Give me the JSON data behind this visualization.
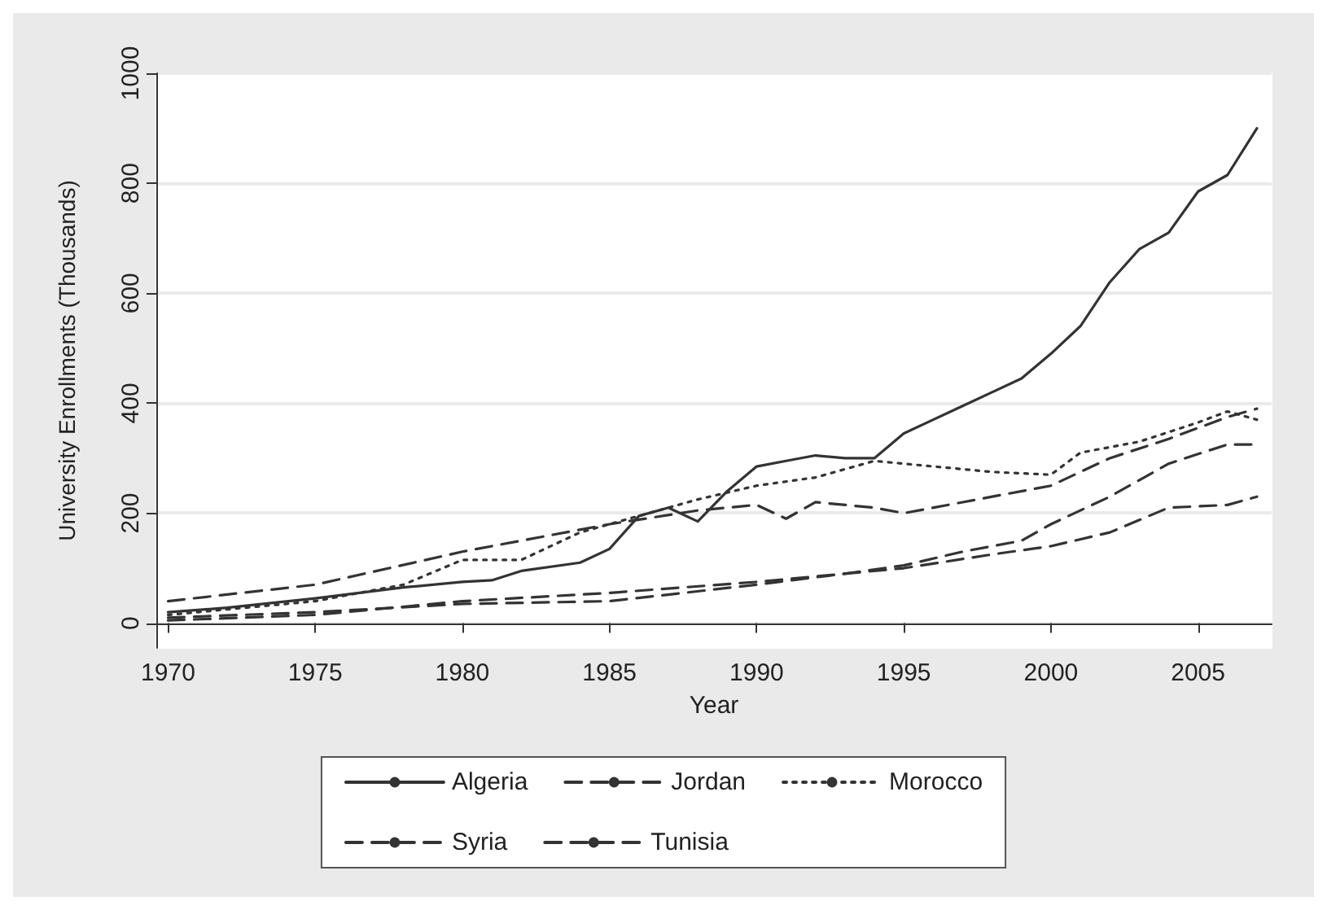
{
  "chart_data": {
    "type": "line",
    "xlabel": "Year",
    "ylabel": "University Enrollments (Thousands)",
    "xlim": [
      1969.6,
      2007.5
    ],
    "xticks": [
      1970,
      1975,
      1980,
      1985,
      1990,
      1995,
      2000,
      2005
    ],
    "ylim": [
      -45,
      1000
    ],
    "yticks": [
      0,
      200,
      400,
      600,
      800,
      1000
    ],
    "grid": "y",
    "legend": "bottom",
    "marker": "none",
    "series": [
      {
        "name": "Algeria",
        "color": "#333333",
        "line_style": "solid",
        "x": [
          1970,
          1972,
          1975,
          1978,
          1980,
          1981,
          1982,
          1984,
          1985,
          1986,
          1987,
          1988,
          1989,
          1990,
          1991,
          1992,
          1993,
          1994,
          1995,
          1996,
          1997,
          1998,
          1999,
          2000,
          2001,
          2002,
          2003,
          2004,
          2005,
          2006,
          2007
        ],
        "values": [
          20,
          28,
          45,
          65,
          75,
          78,
          95,
          110,
          135,
          195,
          210,
          185,
          240,
          285,
          295,
          305,
          300,
          300,
          345,
          370,
          395,
          420,
          445,
          490,
          540,
          620,
          680,
          710,
          785,
          815,
          900
        ]
      },
      {
        "name": "Jordan",
        "color": "#333333",
        "line_style": "dashed",
        "x": [
          1970,
          1975,
          1980,
          1985,
          1990,
          1995,
          1998,
          2000,
          2002,
          2004,
          2006,
          2007
        ],
        "values": [
          5,
          15,
          40,
          55,
          75,
          100,
          125,
          140,
          165,
          210,
          215,
          230
        ]
      },
      {
        "name": "Morocco",
        "color": "#333333",
        "line_style": "dotted",
        "x": [
          1970,
          1975,
          1978,
          1980,
          1982,
          1984,
          1986,
          1988,
          1990,
          1992,
          1994,
          1996,
          1998,
          2000,
          2001,
          2003,
          2005,
          2006,
          2007
        ],
        "values": [
          15,
          40,
          70,
          115,
          115,
          165,
          195,
          225,
          250,
          265,
          295,
          285,
          275,
          270,
          310,
          330,
          365,
          385,
          370
        ]
      },
      {
        "name": "Syria",
        "color": "#333333",
        "line_style": "dashed",
        "x": [
          1970,
          1975,
          1980,
          1985,
          1988,
          1990,
          1991,
          1992,
          1994,
          1995,
          1997,
          2000,
          2002,
          2004,
          2006,
          2007
        ],
        "values": [
          40,
          70,
          130,
          180,
          205,
          215,
          190,
          220,
          210,
          200,
          220,
          250,
          300,
          335,
          375,
          390
        ]
      },
      {
        "name": "Tunisia",
        "color": "#333333",
        "line_style": "dashed",
        "x": [
          1970,
          1975,
          1980,
          1985,
          1990,
          1993,
          1995,
          1997,
          1999,
          2000,
          2002,
          2004,
          2006,
          2007
        ],
        "values": [
          10,
          20,
          35,
          40,
          70,
          90,
          105,
          130,
          150,
          180,
          230,
          290,
          325,
          325
        ]
      }
    ]
  }
}
